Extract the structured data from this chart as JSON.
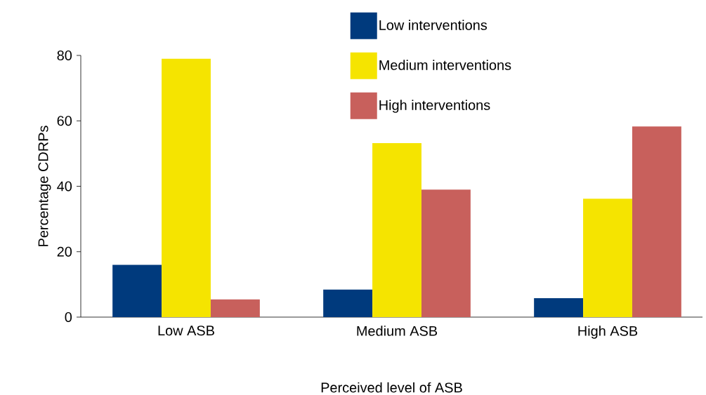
{
  "chart_data": {
    "type": "bar",
    "xlabel": "Perceived level of ASB",
    "ylabel": "Percentage CDRPs",
    "categories": [
      "Low ASB",
      "Medium ASB",
      "High ASB"
    ],
    "series": [
      {
        "name": "Low interventions",
        "color": "#003a7d",
        "values": [
          16,
          8.4,
          5.8
        ]
      },
      {
        "name": "Medium interventions",
        "color": "#f5e400",
        "values": [
          79,
          53.2,
          36.2
        ]
      },
      {
        "name": "High interventions",
        "color": "#c8605c",
        "values": [
          5.4,
          39,
          58.3
        ]
      }
    ],
    "ylim": [
      0,
      80
    ],
    "yticks": [
      0,
      20,
      40,
      60,
      80
    ],
    "grid": false,
    "legend": "top"
  }
}
